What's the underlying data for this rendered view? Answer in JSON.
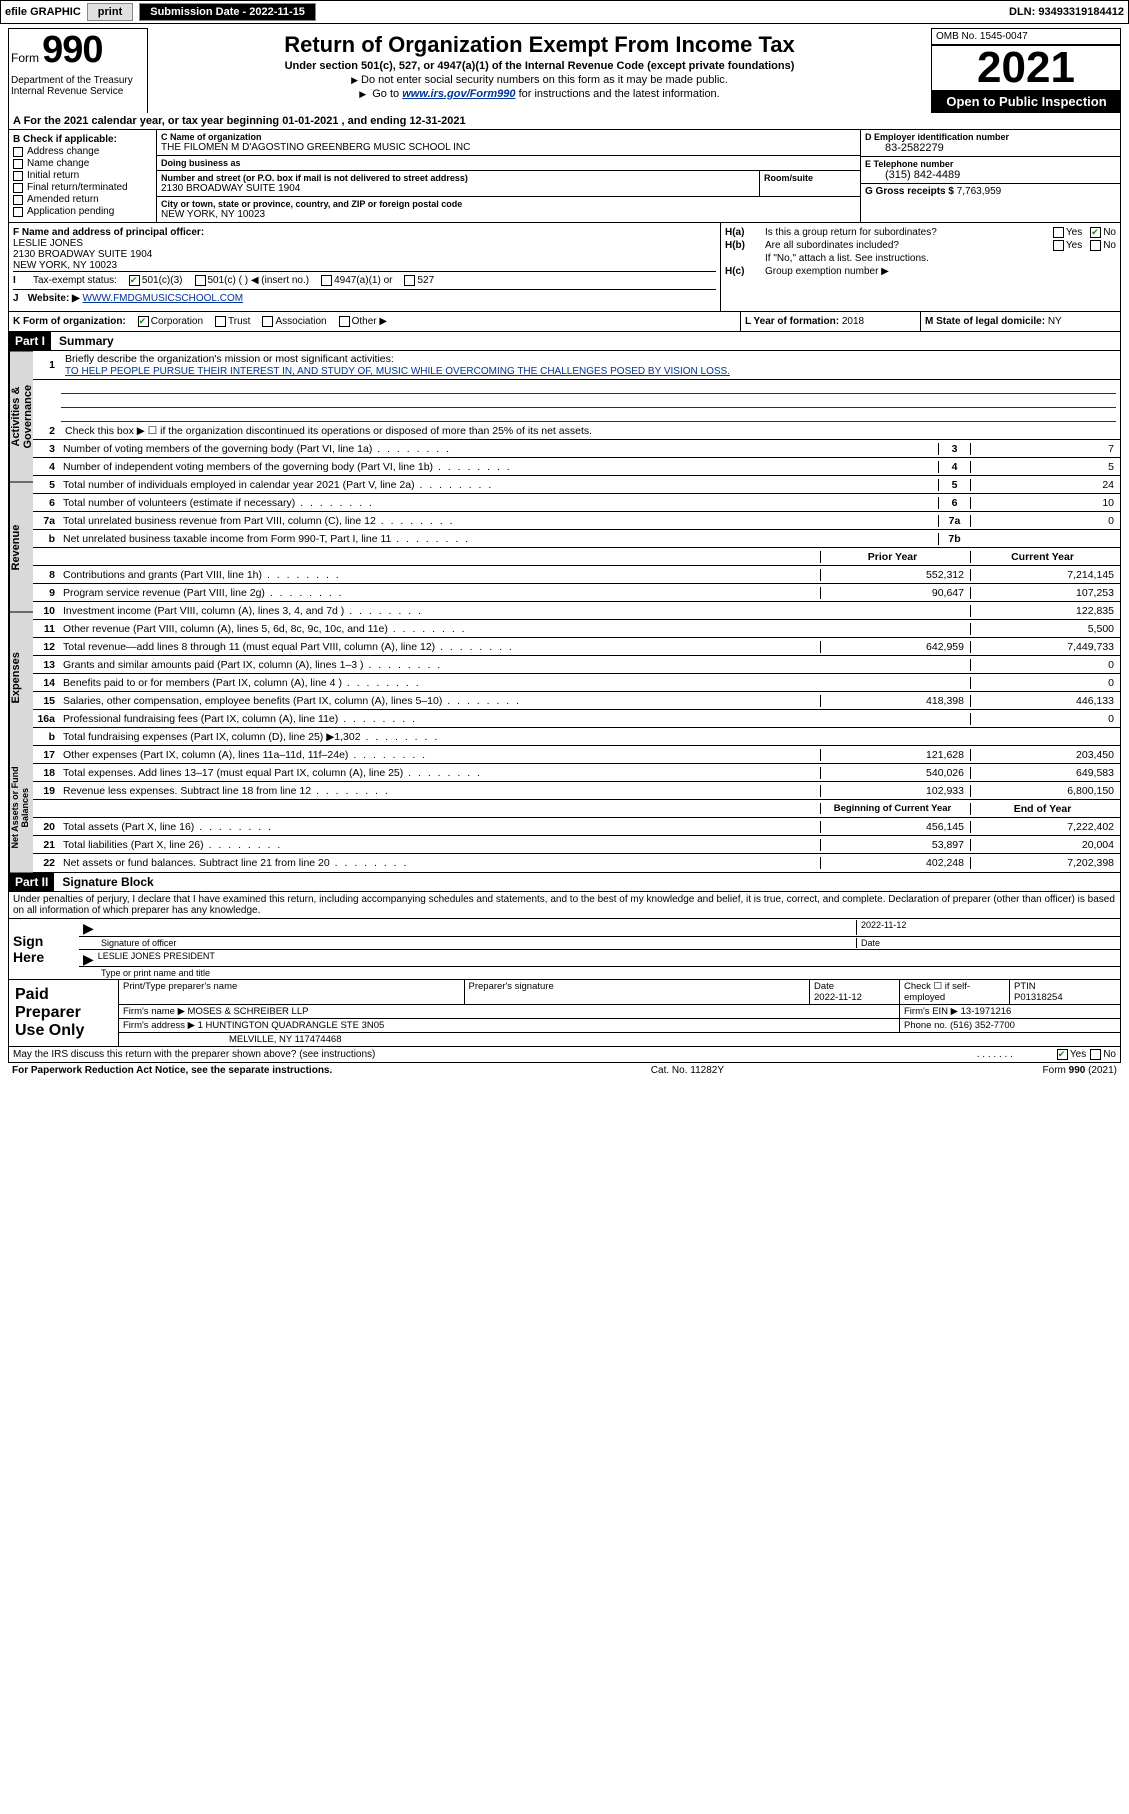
{
  "topbar": {
    "efile_label": "efile GRAPHIC",
    "print_btn": "print",
    "submission_label": "Submission Date - 2022-11-15",
    "dln_label": "DLN: 93493319184412"
  },
  "header": {
    "form_prefix": "Form",
    "form_number": "990",
    "dept": "Department of the Treasury Internal Revenue Service",
    "title": "Return of Organization Exempt From Income Tax",
    "subtitle": "Under section 501(c), 527, or 4947(a)(1) of the Internal Revenue Code (except private foundations)",
    "note1": "Do not enter social security numbers on this form as it may be made public.",
    "note2_pre": "Go to ",
    "note2_link": "www.irs.gov/Form990",
    "note2_post": " for instructions and the latest information.",
    "omb": "OMB No. 1545-0047",
    "year": "2021",
    "inspect": "Open to Public Inspection"
  },
  "rowA": "A For the 2021 calendar year, or tax year beginning 01-01-2021   , and ending 12-31-2021",
  "sectionB": {
    "label": "B Check if applicable:",
    "items": [
      "Address change",
      "Name change",
      "Initial return",
      "Final return/terminated",
      "Amended return",
      "Application pending"
    ]
  },
  "sectionC": {
    "name_lbl": "C Name of organization",
    "name": "THE FILOMEN M D'AGOSTINO GREENBERG MUSIC SCHOOL INC",
    "dba_lbl": "Doing business as",
    "dba": "",
    "street_lbl": "Number and street (or P.O. box if mail is not delivered to street address)",
    "room_lbl": "Room/suite",
    "street": "2130 BROADWAY SUITE 1904",
    "city_lbl": "City or town, state or province, country, and ZIP or foreign postal code",
    "city": "NEW YORK, NY  10023"
  },
  "sectionD": {
    "ein_lbl": "D Employer identification number",
    "ein": "83-2582279",
    "tel_lbl": "E Telephone number",
    "tel": "(315) 842-4489",
    "gross_lbl": "G Gross receipts $",
    "gross": "7,763,959"
  },
  "sectionF": {
    "lbl": "F Name and address of principal officer:",
    "name": "LESLIE JONES",
    "addr1": "2130 BROADWAY SUITE 1904",
    "addr2": "NEW YORK, NY  10023"
  },
  "sectionH": {
    "ha_lbl": "Is this a group return for subordinates?",
    "hb_lbl": "Are all subordinates included?",
    "hb_note": "If \"No,\" attach a list. See instructions.",
    "hc_lbl": "Group exemption number ▶"
  },
  "rowI": {
    "lbl": "Tax-exempt status:",
    "opt1": "501(c)(3)",
    "opt2": "501(c) (  ) ◀ (insert no.)",
    "opt3": "4947(a)(1) or",
    "opt4": "527"
  },
  "rowJ": {
    "lbl": "Website: ▶",
    "url": "WWW.FMDGMUSICSCHOOL.COM"
  },
  "rowK": {
    "lbl": "K Form of organization:",
    "opts": [
      "Corporation",
      "Trust",
      "Association",
      "Other ▶"
    ]
  },
  "rowL": {
    "lbl": "L Year of formation:",
    "val": "2018"
  },
  "rowM": {
    "lbl": "M State of legal domicile:",
    "val": "NY"
  },
  "partI": {
    "header": "Part I",
    "title": "Summary"
  },
  "summary": {
    "side_labels": [
      "Activities & Governance",
      "Revenue",
      "Expenses",
      "Net Assets or Fund Balances"
    ],
    "q1_lbl": "Briefly describe the organization's mission or most significant activities:",
    "q1_mission": "TO HELP PEOPLE PURSUE THEIR INTEREST IN, AND STUDY OF, MUSIC WHILE OVERCOMING THE CHALLENGES POSED BY VISION LOSS.",
    "q2_lbl": "Check this box ▶ ☐  if the organization discontinued its operations or disposed of more than 25% of its net assets.",
    "rows_gov": [
      {
        "n": "3",
        "t": "Number of voting members of the governing body (Part VI, line 1a)",
        "box": "3",
        "v": "7"
      },
      {
        "n": "4",
        "t": "Number of independent voting members of the governing body (Part VI, line 1b)",
        "box": "4",
        "v": "5"
      },
      {
        "n": "5",
        "t": "Total number of individuals employed in calendar year 2021 (Part V, line 2a)",
        "box": "5",
        "v": "24"
      },
      {
        "n": "6",
        "t": "Total number of volunteers (estimate if necessary)",
        "box": "6",
        "v": "10"
      },
      {
        "n": "7a",
        "t": "Total unrelated business revenue from Part VIII, column (C), line 12",
        "box": "7a",
        "v": "0"
      },
      {
        "n": "b",
        "t": "Net unrelated business taxable income from Form 990-T, Part I, line 11",
        "box": "7b",
        "v": ""
      }
    ],
    "hdr_prior": "Prior Year",
    "hdr_curr": "Current Year",
    "rows_rev": [
      {
        "n": "8",
        "t": "Contributions and grants (Part VIII, line 1h)",
        "p": "552,312",
        "c": "7,214,145"
      },
      {
        "n": "9",
        "t": "Program service revenue (Part VIII, line 2g)",
        "p": "90,647",
        "c": "107,253"
      },
      {
        "n": "10",
        "t": "Investment income (Part VIII, column (A), lines 3, 4, and 7d )",
        "p": "",
        "c": "122,835"
      },
      {
        "n": "11",
        "t": "Other revenue (Part VIII, column (A), lines 5, 6d, 8c, 9c, 10c, and 11e)",
        "p": "",
        "c": "5,500"
      },
      {
        "n": "12",
        "t": "Total revenue—add lines 8 through 11 (must equal Part VIII, column (A), line 12)",
        "p": "642,959",
        "c": "7,449,733"
      }
    ],
    "rows_exp": [
      {
        "n": "13",
        "t": "Grants and similar amounts paid (Part IX, column (A), lines 1–3 )",
        "p": "",
        "c": "0"
      },
      {
        "n": "14",
        "t": "Benefits paid to or for members (Part IX, column (A), line 4 )",
        "p": "",
        "c": "0"
      },
      {
        "n": "15",
        "t": "Salaries, other compensation, employee benefits (Part IX, column (A), lines 5–10)",
        "p": "418,398",
        "c": "446,133"
      },
      {
        "n": "16a",
        "t": "Professional fundraising fees (Part IX, column (A), line 11e)",
        "p": "",
        "c": "0"
      },
      {
        "n": "b",
        "t": "Total fundraising expenses (Part IX, column (D), line 25) ▶1,302",
        "p": "grey",
        "c": "grey"
      },
      {
        "n": "17",
        "t": "Other expenses (Part IX, column (A), lines 11a–11d, 11f–24e)",
        "p": "121,628",
        "c": "203,450"
      },
      {
        "n": "18",
        "t": "Total expenses. Add lines 13–17 (must equal Part IX, column (A), line 25)",
        "p": "540,026",
        "c": "649,583"
      },
      {
        "n": "19",
        "t": "Revenue less expenses. Subtract line 18 from line 12",
        "p": "102,933",
        "c": "6,800,150"
      }
    ],
    "hdr_beg": "Beginning of Current Year",
    "hdr_end": "End of Year",
    "rows_net": [
      {
        "n": "20",
        "t": "Total assets (Part X, line 16)",
        "p": "456,145",
        "c": "7,222,402"
      },
      {
        "n": "21",
        "t": "Total liabilities (Part X, line 26)",
        "p": "53,897",
        "c": "20,004"
      },
      {
        "n": "22",
        "t": "Net assets or fund balances. Subtract line 21 from line 20",
        "p": "402,248",
        "c": "7,202,398"
      }
    ]
  },
  "partII": {
    "header": "Part II",
    "title": "Signature Block"
  },
  "sig": {
    "intro": "Under penalties of perjury, I declare that I have examined this return, including accompanying schedules and statements, and to the best of my knowledge and belief, it is true, correct, and complete. Declaration of preparer (other than officer) is based on all information of which preparer has any knowledge.",
    "sign_here": "Sign Here",
    "sig_officer_lbl": "Signature of officer",
    "date_lbl": "Date",
    "date_val": "2022-11-12",
    "name_title": "LESLIE JONES PRESIDENT",
    "name_title_lbl": "Type or print name and title"
  },
  "prep": {
    "left": "Paid Preparer Use Only",
    "h1": "Print/Type preparer's name",
    "h2": "Preparer's signature",
    "h3": "Date",
    "h3v": "2022-11-12",
    "h4": "Check ☐ if self-employed",
    "h5": "PTIN",
    "h5v": "P01318254",
    "firm_name_lbl": "Firm's name    ▶",
    "firm_name": "MOSES & SCHREIBER LLP",
    "firm_ein_lbl": "Firm's EIN ▶",
    "firm_ein": "13-1971216",
    "firm_addr_lbl": "Firm's address ▶",
    "firm_addr1": "1 HUNTINGTON QUADRANGLE STE 3N05",
    "firm_addr2": "MELVILLE, NY  117474468",
    "phone_lbl": "Phone no.",
    "phone": "(516) 352-7700"
  },
  "bottom": {
    "q": "May the IRS discuss this return with the preparer shown above? (see instructions)",
    "yes": "Yes",
    "no": "No"
  },
  "footer": {
    "left": "For Paperwork Reduction Act Notice, see the separate instructions.",
    "mid": "Cat. No. 11282Y",
    "right_pre": "Form ",
    "right_num": "990",
    "right_post": " (2021)"
  }
}
